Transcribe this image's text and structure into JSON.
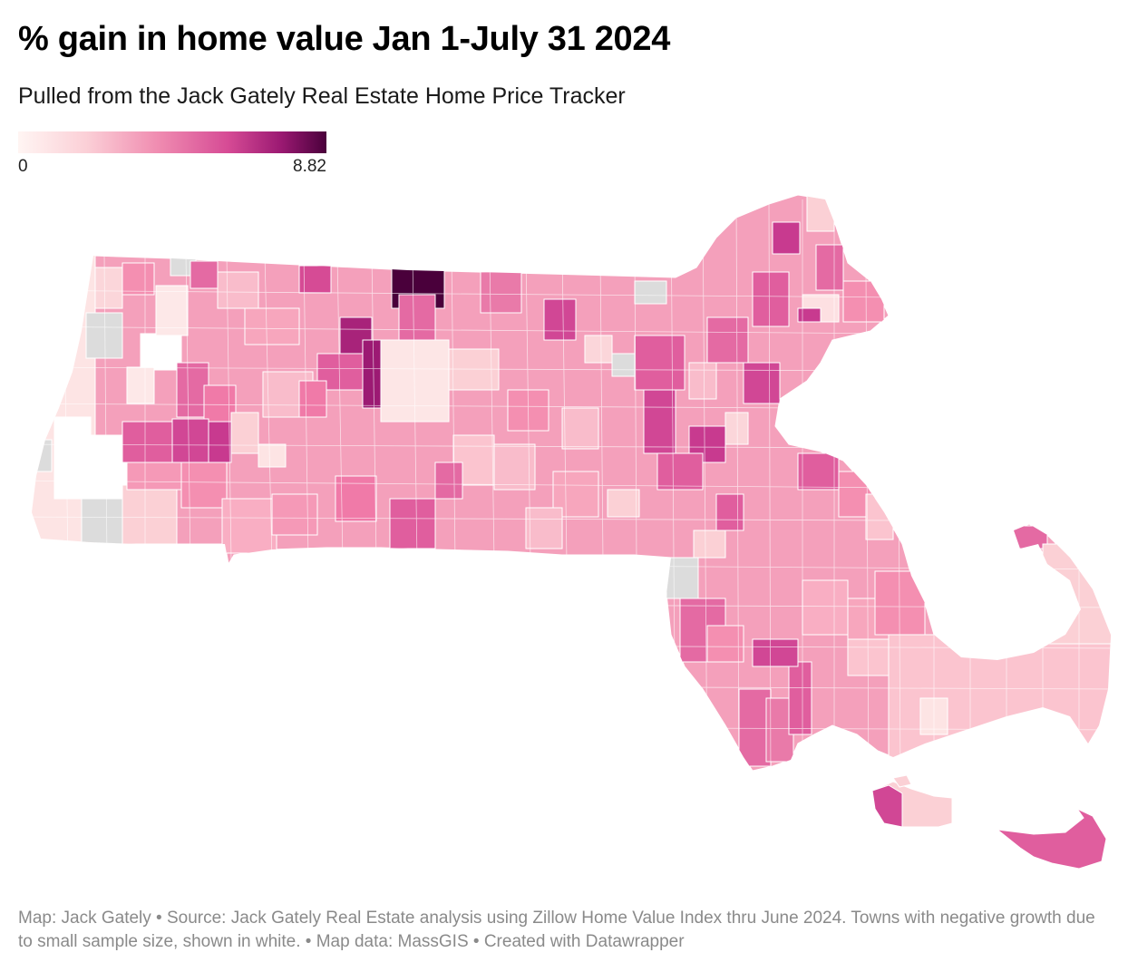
{
  "header": {
    "title": "% gain in home value Jan 1-July 31 2024",
    "subtitle": "Pulled from the Jack Gately Real Estate Home Price Tracker"
  },
  "legend": {
    "min_label": "0",
    "max_label": "8.82",
    "colors": [
      "#fff5f3",
      "#fbd0d7",
      "#f08db1",
      "#d64b95",
      "#9c1a73",
      "#4a003b"
    ],
    "no_data_color": "#dcdcdc",
    "negative_color": "#ffffff"
  },
  "footer": {
    "note": "Map: Jack Gately • Source: Jack Gately Real Estate analysis using Zillow Home Value Index thru June 2024. Towns with negative growth due to small sample size, shown in white. • Map data: MassGIS • Created with Datawrapper"
  }
}
